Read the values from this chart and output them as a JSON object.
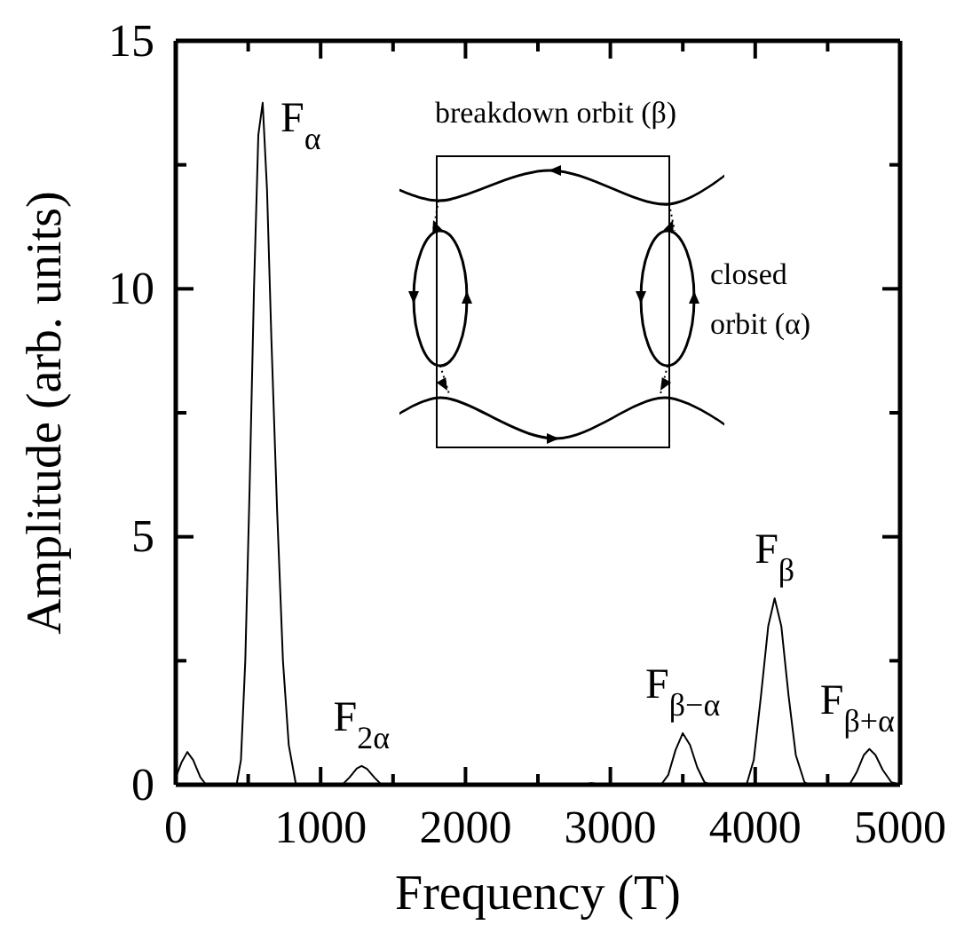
{
  "chart_data": {
    "type": "line",
    "xlabel": "Frequency (T)",
    "ylabel": "Amplitude (arb. units)",
    "xlim": [
      0,
      5000
    ],
    "ylim": [
      0,
      15
    ],
    "xticks": [
      0,
      {
        "value": 500,
        "label": null
      },
      1000,
      {
        "value": 1500,
        "label": null
      },
      2000,
      {
        "value": 2500,
        "label": null
      },
      3000,
      {
        "value": 3500,
        "label": null
      },
      4000,
      {
        "value": 4500,
        "label": null
      },
      5000
    ],
    "yticks": [
      0,
      {
        "value": 2.5,
        "label": null
      },
      5,
      {
        "value": 7.5,
        "label": null
      },
      10,
      {
        "value": 12.5,
        "label": null
      },
      15
    ],
    "grid": false,
    "marker": "none",
    "line_style": "solid",
    "series": [
      {
        "color": "#000000",
        "x": [
          0,
          40,
          80,
          120,
          170,
          210,
          420,
          450,
          480,
          510,
          540,
          570,
          600,
          630,
          660,
          700,
          740,
          780,
          830,
          1150,
          1200,
          1250,
          1283,
          1320,
          1370,
          1420,
          2800,
          2870,
          2940,
          3350,
          3400,
          3450,
          3500,
          3550,
          3600,
          3650,
          3690,
          3940,
          3990,
          4040,
          4090,
          4134,
          4180,
          4230,
          4280,
          4340,
          4370,
          4650,
          4700,
          4750,
          4788,
          4830,
          4880,
          4940,
          5000
        ],
        "values": [
          0.15,
          0.45,
          0.66,
          0.5,
          0.15,
          0,
          0,
          0.5,
          2.5,
          6,
          10,
          13.1,
          13.75,
          12,
          9,
          5.5,
          2.5,
          0.8,
          0,
          0,
          0.15,
          0.33,
          0.38,
          0.32,
          0.15,
          0,
          0,
          0.03,
          0,
          0,
          0.2,
          0.7,
          1.04,
          0.8,
          0.35,
          0.05,
          0,
          0,
          0.5,
          1.8,
          3.2,
          3.76,
          3.2,
          1.8,
          0.6,
          0.05,
          0,
          0,
          0.25,
          0.6,
          0.72,
          0.6,
          0.3,
          0.05,
          0
        ]
      }
    ],
    "annotations": [
      {
        "text": "F$_{α}$",
        "x": 600,
        "y": 13.75
      },
      {
        "text": "F$_{2α}$",
        "x": 1283,
        "y": 0.38
      },
      {
        "text": "F$_{β−α}$",
        "x": 3500,
        "y": 1.04
      },
      {
        "text": "F$_{β}$",
        "x": 4134,
        "y": 3.76
      },
      {
        "text": "F$_{β+α}$",
        "x": 4788,
        "y": 0.72
      },
      "breakdown orbit (β)",
      "closed orbit (α)"
    ]
  }
}
